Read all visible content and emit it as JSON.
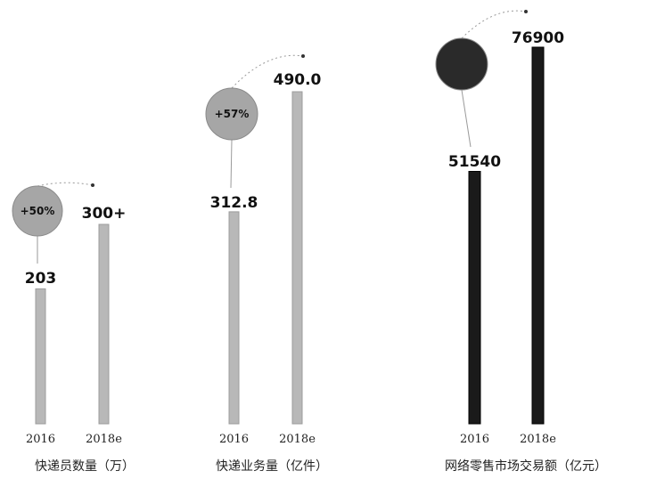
{
  "chart_data": [
    {
      "type": "bar",
      "caption": "快递员数量（万）",
      "categories": [
        "2016",
        "2018e"
      ],
      "values": [
        203,
        300
      ],
      "value_labels": [
        "203",
        "300+"
      ],
      "growth_badge": "+50%",
      "color": "#b8b8b8",
      "badge_color": "#a6a6a6"
    },
    {
      "type": "bar",
      "caption": "快递业务量（亿件）",
      "categories": [
        "2016",
        "2018e"
      ],
      "values": [
        312.8,
        490.0
      ],
      "value_labels": [
        "312.8",
        "490.0"
      ],
      "growth_badge": "+57%",
      "color": "#b8b8b8",
      "badge_color": "#a6a6a6"
    },
    {
      "type": "bar",
      "caption": "网络零售市场交易额（亿元）",
      "categories": [
        "2016",
        "2018e"
      ],
      "values": [
        51540,
        76900
      ],
      "value_labels": [
        "51540",
        "76900"
      ],
      "growth_badge": "",
      "color": "#1a1a1a",
      "badge_color": "#2a2a2a"
    }
  ]
}
